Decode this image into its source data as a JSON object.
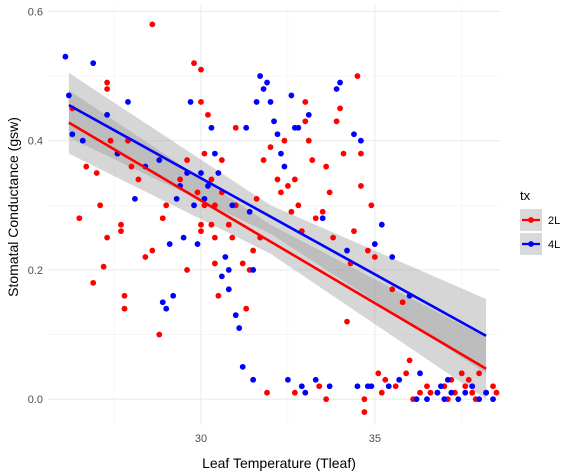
{
  "chart_data": {
    "type": "scatter",
    "xlabel": "Leaf Temperature (Tleaf)",
    "ylabel": "Stomatal Conductance (gsw)",
    "xlim": [
      25.6,
      38.6
    ],
    "ylim": [
      -0.04,
      0.61
    ],
    "x_major_ticks": [
      30,
      35
    ],
    "x_minor_ticks": [
      27.5,
      32.5,
      37.5
    ],
    "y_major_ticks": [
      0.0,
      0.2,
      0.4,
      0.6
    ],
    "y_tick_labels": [
      "0.0",
      "0.2",
      "0.4",
      "0.6"
    ],
    "y_minor_ticks": [
      0.1,
      0.3,
      0.5
    ],
    "grid": true,
    "legend": {
      "title": "tx",
      "placement": "right",
      "entries": [
        {
          "label": "2L",
          "color": "#ff0000"
        },
        {
          "label": "4L",
          "color": "#0000ff"
        }
      ]
    },
    "series": [
      {
        "name": "2L",
        "color": "#ff0000",
        "trend": {
          "x": [
            26.2,
            38.2
          ],
          "y": [
            0.428,
            0.047
          ]
        },
        "band": {
          "x": [
            26.2,
            32.0,
            38.2
          ],
          "lower": [
            0.38,
            0.225,
            0.0
          ],
          "upper": [
            0.478,
            0.27,
            0.095
          ]
        },
        "points": [
          [
            26.3,
            0.45
          ],
          [
            26.5,
            0.28
          ],
          [
            26.7,
            0.36
          ],
          [
            26.9,
            0.18
          ],
          [
            27.0,
            0.35
          ],
          [
            27.1,
            0.3
          ],
          [
            27.2,
            0.205
          ],
          [
            27.3,
            0.25
          ],
          [
            27.3,
            0.49
          ],
          [
            27.3,
            0.48
          ],
          [
            27.4,
            0.4
          ],
          [
            27.6,
            0.38
          ],
          [
            27.7,
            0.27
          ],
          [
            27.7,
            0.26
          ],
          [
            27.8,
            0.16
          ],
          [
            27.8,
            0.14
          ],
          [
            27.9,
            0.4
          ],
          [
            28.0,
            0.36
          ],
          [
            28.2,
            0.34
          ],
          [
            28.4,
            0.22
          ],
          [
            28.6,
            0.23
          ],
          [
            28.6,
            0.58
          ],
          [
            28.8,
            0.1
          ],
          [
            28.9,
            0.28
          ],
          [
            29.0,
            0.3
          ],
          [
            29.4,
            0.34
          ],
          [
            29.6,
            0.2
          ],
          [
            29.6,
            0.37
          ],
          [
            29.8,
            0.52
          ],
          [
            29.9,
            0.32
          ],
          [
            30.0,
            0.51
          ],
          [
            30.0,
            0.46
          ],
          [
            30.0,
            0.27
          ],
          [
            30.0,
            0.26
          ],
          [
            30.1,
            0.3
          ],
          [
            30.1,
            0.38
          ],
          [
            30.2,
            0.44
          ],
          [
            30.3,
            0.27
          ],
          [
            30.3,
            0.34
          ],
          [
            30.4,
            0.25
          ],
          [
            30.4,
            0.21
          ],
          [
            30.4,
            0.3
          ],
          [
            30.5,
            0.16
          ],
          [
            30.6,
            0.32
          ],
          [
            30.6,
            0.37
          ],
          [
            30.8,
            0.27
          ],
          [
            30.9,
            0.25
          ],
          [
            31.0,
            0.3
          ],
          [
            31.0,
            0.42
          ],
          [
            31.2,
            0.21
          ],
          [
            31.3,
            0.14
          ],
          [
            31.4,
            0.2
          ],
          [
            31.5,
            0.23
          ],
          [
            31.6,
            0.31
          ],
          [
            31.7,
            0.25
          ],
          [
            31.8,
            0.37
          ],
          [
            31.9,
            0.01
          ],
          [
            32.0,
            0.39
          ],
          [
            32.2,
            0.34
          ],
          [
            32.3,
            0.32
          ],
          [
            32.4,
            0.4
          ],
          [
            32.5,
            0.33
          ],
          [
            32.6,
            0.29
          ],
          [
            32.7,
            0.34
          ],
          [
            32.8,
            0.3
          ],
          [
            32.9,
            0.26
          ],
          [
            33.0,
            0.46
          ],
          [
            33.0,
            0.43
          ],
          [
            33.1,
            0.4
          ],
          [
            33.2,
            0.37
          ],
          [
            33.3,
            0.28
          ],
          [
            33.4,
            0.02
          ],
          [
            33.5,
            0.29
          ],
          [
            33.6,
            0.36
          ],
          [
            33.7,
            0.32
          ],
          [
            33.8,
            0.25
          ],
          [
            33.9,
            0.43
          ],
          [
            34.0,
            0.45
          ],
          [
            34.1,
            0.38
          ],
          [
            34.2,
            0.12
          ],
          [
            34.3,
            0.21
          ],
          [
            34.4,
            0.26
          ],
          [
            34.5,
            0.5
          ],
          [
            34.6,
            0.38
          ],
          [
            34.6,
            0.33
          ],
          [
            34.7,
            0.0
          ],
          [
            34.8,
            0.23
          ],
          [
            34.9,
            0.3
          ],
          [
            35.0,
            0.22
          ],
          [
            35.1,
            0.04
          ],
          [
            35.2,
            0.01
          ],
          [
            35.3,
            0.03
          ],
          [
            35.5,
            0.17
          ],
          [
            35.6,
            0.02
          ],
          [
            35.8,
            0.15
          ],
          [
            35.9,
            0.04
          ],
          [
            36.0,
            0.06
          ],
          [
            36.1,
            0.0
          ],
          [
            36.3,
            0.01
          ],
          [
            36.5,
            0.02
          ],
          [
            36.8,
            0.01
          ],
          [
            37.0,
            0.02
          ],
          [
            37.2,
            0.03
          ],
          [
            37.3,
            0.01
          ],
          [
            37.5,
            0.04
          ],
          [
            37.6,
            0.02
          ],
          [
            37.8,
            0.01
          ],
          [
            37.9,
            0.0
          ],
          [
            38.0,
            0.04
          ],
          [
            38.2,
            0.01
          ],
          [
            38.4,
            0.02
          ],
          [
            38.5,
            0.01
          ],
          [
            37.1,
            0.0
          ],
          [
            36.6,
            0.01
          ],
          [
            37.7,
            0.03
          ],
          [
            34.7,
            -0.02
          ],
          [
            33.6,
            0.0
          ],
          [
            32.7,
            0.01
          ]
        ]
      },
      {
        "name": "4L",
        "color": "#0000ff",
        "trend": {
          "x": [
            26.2,
            38.2
          ],
          "y": [
            0.455,
            0.098
          ]
        },
        "band": {
          "x": [
            26.2,
            32.0,
            38.2
          ],
          "lower": [
            0.405,
            0.256,
            0.04
          ],
          "upper": [
            0.505,
            0.3,
            0.155
          ]
        },
        "points": [
          [
            26.1,
            0.53
          ],
          [
            26.2,
            0.47
          ],
          [
            26.3,
            0.41
          ],
          [
            26.6,
            0.4
          ],
          [
            26.9,
            0.52
          ],
          [
            27.3,
            0.44
          ],
          [
            27.6,
            0.38
          ],
          [
            27.9,
            0.46
          ],
          [
            28.1,
            0.31
          ],
          [
            28.4,
            0.36
          ],
          [
            28.8,
            0.37
          ],
          [
            28.9,
            0.15
          ],
          [
            29.0,
            0.14
          ],
          [
            29.1,
            0.24
          ],
          [
            29.2,
            0.16
          ],
          [
            29.3,
            0.31
          ],
          [
            29.4,
            0.33
          ],
          [
            29.5,
            0.25
          ],
          [
            29.6,
            0.35
          ],
          [
            29.7,
            0.46
          ],
          [
            29.8,
            0.3
          ],
          [
            29.9,
            0.24
          ],
          [
            30.0,
            0.35
          ],
          [
            30.1,
            0.31
          ],
          [
            30.2,
            0.33
          ],
          [
            30.3,
            0.42
          ],
          [
            30.4,
            0.38
          ],
          [
            30.5,
            0.35
          ],
          [
            30.6,
            0.19
          ],
          [
            30.7,
            0.22
          ],
          [
            30.8,
            0.2
          ],
          [
            30.8,
            0.17
          ],
          [
            30.9,
            0.3
          ],
          [
            31.0,
            0.13
          ],
          [
            31.1,
            0.11
          ],
          [
            31.2,
            0.05
          ],
          [
            31.3,
            0.42
          ],
          [
            31.4,
            0.29
          ],
          [
            31.5,
            0.03
          ],
          [
            31.6,
            0.46
          ],
          [
            31.7,
            0.5
          ],
          [
            31.8,
            0.48
          ],
          [
            31.9,
            0.49
          ],
          [
            32.0,
            0.46
          ],
          [
            32.1,
            0.43
          ],
          [
            32.2,
            0.41
          ],
          [
            32.3,
            0.38
          ],
          [
            32.4,
            0.36
          ],
          [
            32.5,
            0.03
          ],
          [
            32.6,
            0.47
          ],
          [
            32.7,
            0.42
          ],
          [
            32.8,
            0.42
          ],
          [
            32.9,
            0.02
          ],
          [
            33.0,
            0.01
          ],
          [
            33.1,
            0.44
          ],
          [
            33.3,
            0.03
          ],
          [
            33.5,
            0.28
          ],
          [
            33.7,
            0.02
          ],
          [
            33.9,
            0.48
          ],
          [
            34.0,
            0.49
          ],
          [
            34.2,
            0.23
          ],
          [
            34.4,
            0.41
          ],
          [
            34.5,
            0.02
          ],
          [
            34.6,
            0.4
          ],
          [
            34.8,
            0.02
          ],
          [
            35.0,
            0.24
          ],
          [
            35.2,
            0.27
          ],
          [
            35.4,
            0.02
          ],
          [
            35.5,
            0.22
          ],
          [
            35.7,
            0.03
          ],
          [
            36.0,
            0.16
          ],
          [
            36.2,
            0.0
          ],
          [
            36.5,
            0.0
          ],
          [
            36.8,
            0.01
          ],
          [
            37.0,
            0.0
          ],
          [
            37.2,
            0.01
          ],
          [
            37.4,
            0.0
          ],
          [
            37.6,
            0.01
          ],
          [
            37.8,
            0.02
          ],
          [
            38.0,
            0.0
          ],
          [
            38.2,
            0.01
          ],
          [
            38.4,
            0.0
          ],
          [
            36.3,
            0.04
          ],
          [
            37.1,
            0.03
          ],
          [
            31.5,
            0.2
          ],
          [
            34.9,
            0.02
          ],
          [
            36.9,
            0.02
          ]
        ]
      }
    ]
  }
}
